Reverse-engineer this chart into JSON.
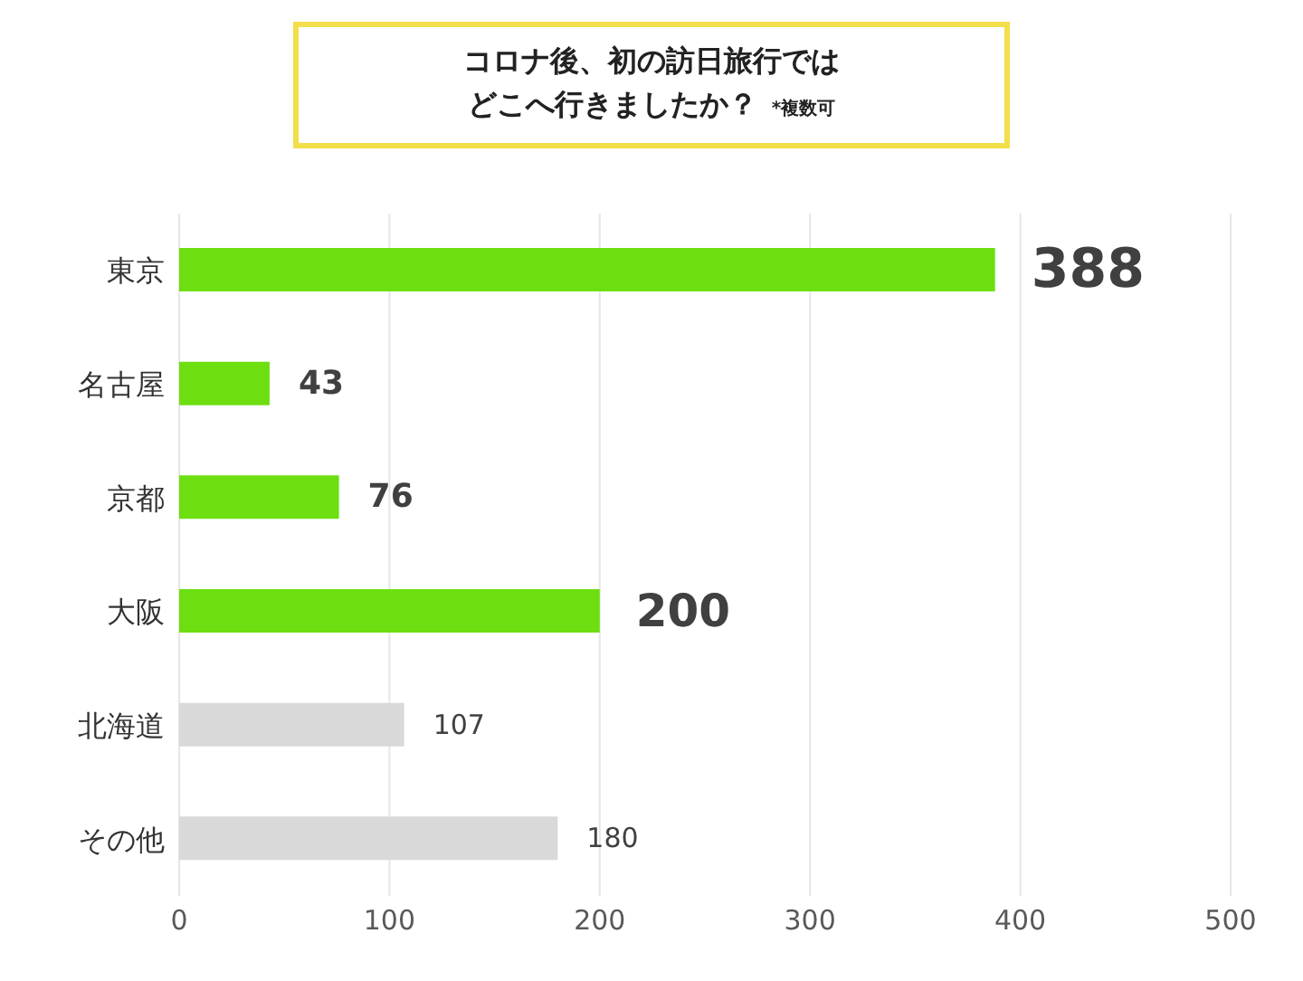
{
  "chart_data": {
    "type": "bar",
    "orientation": "horizontal",
    "title": "コロナ後、初の訪日旅行ではどこへ行きましたか？",
    "annotations": [
      "*複数可"
    ],
    "categories": [
      "東京",
      "名古屋",
      "京都",
      "大阪",
      "北海道",
      "その他"
    ],
    "values": [
      388,
      43,
      76,
      200,
      107,
      180
    ],
    "colors": [
      "#6ddf10",
      "#6ddf10",
      "#6ddf10",
      "#6ddf10",
      "#d9d9d9",
      "#d9d9d9"
    ],
    "data_labels": true,
    "xlim": [
      0,
      500
    ],
    "xticks": [
      0,
      100,
      200,
      300,
      400,
      500
    ],
    "grid": "x"
  }
}
